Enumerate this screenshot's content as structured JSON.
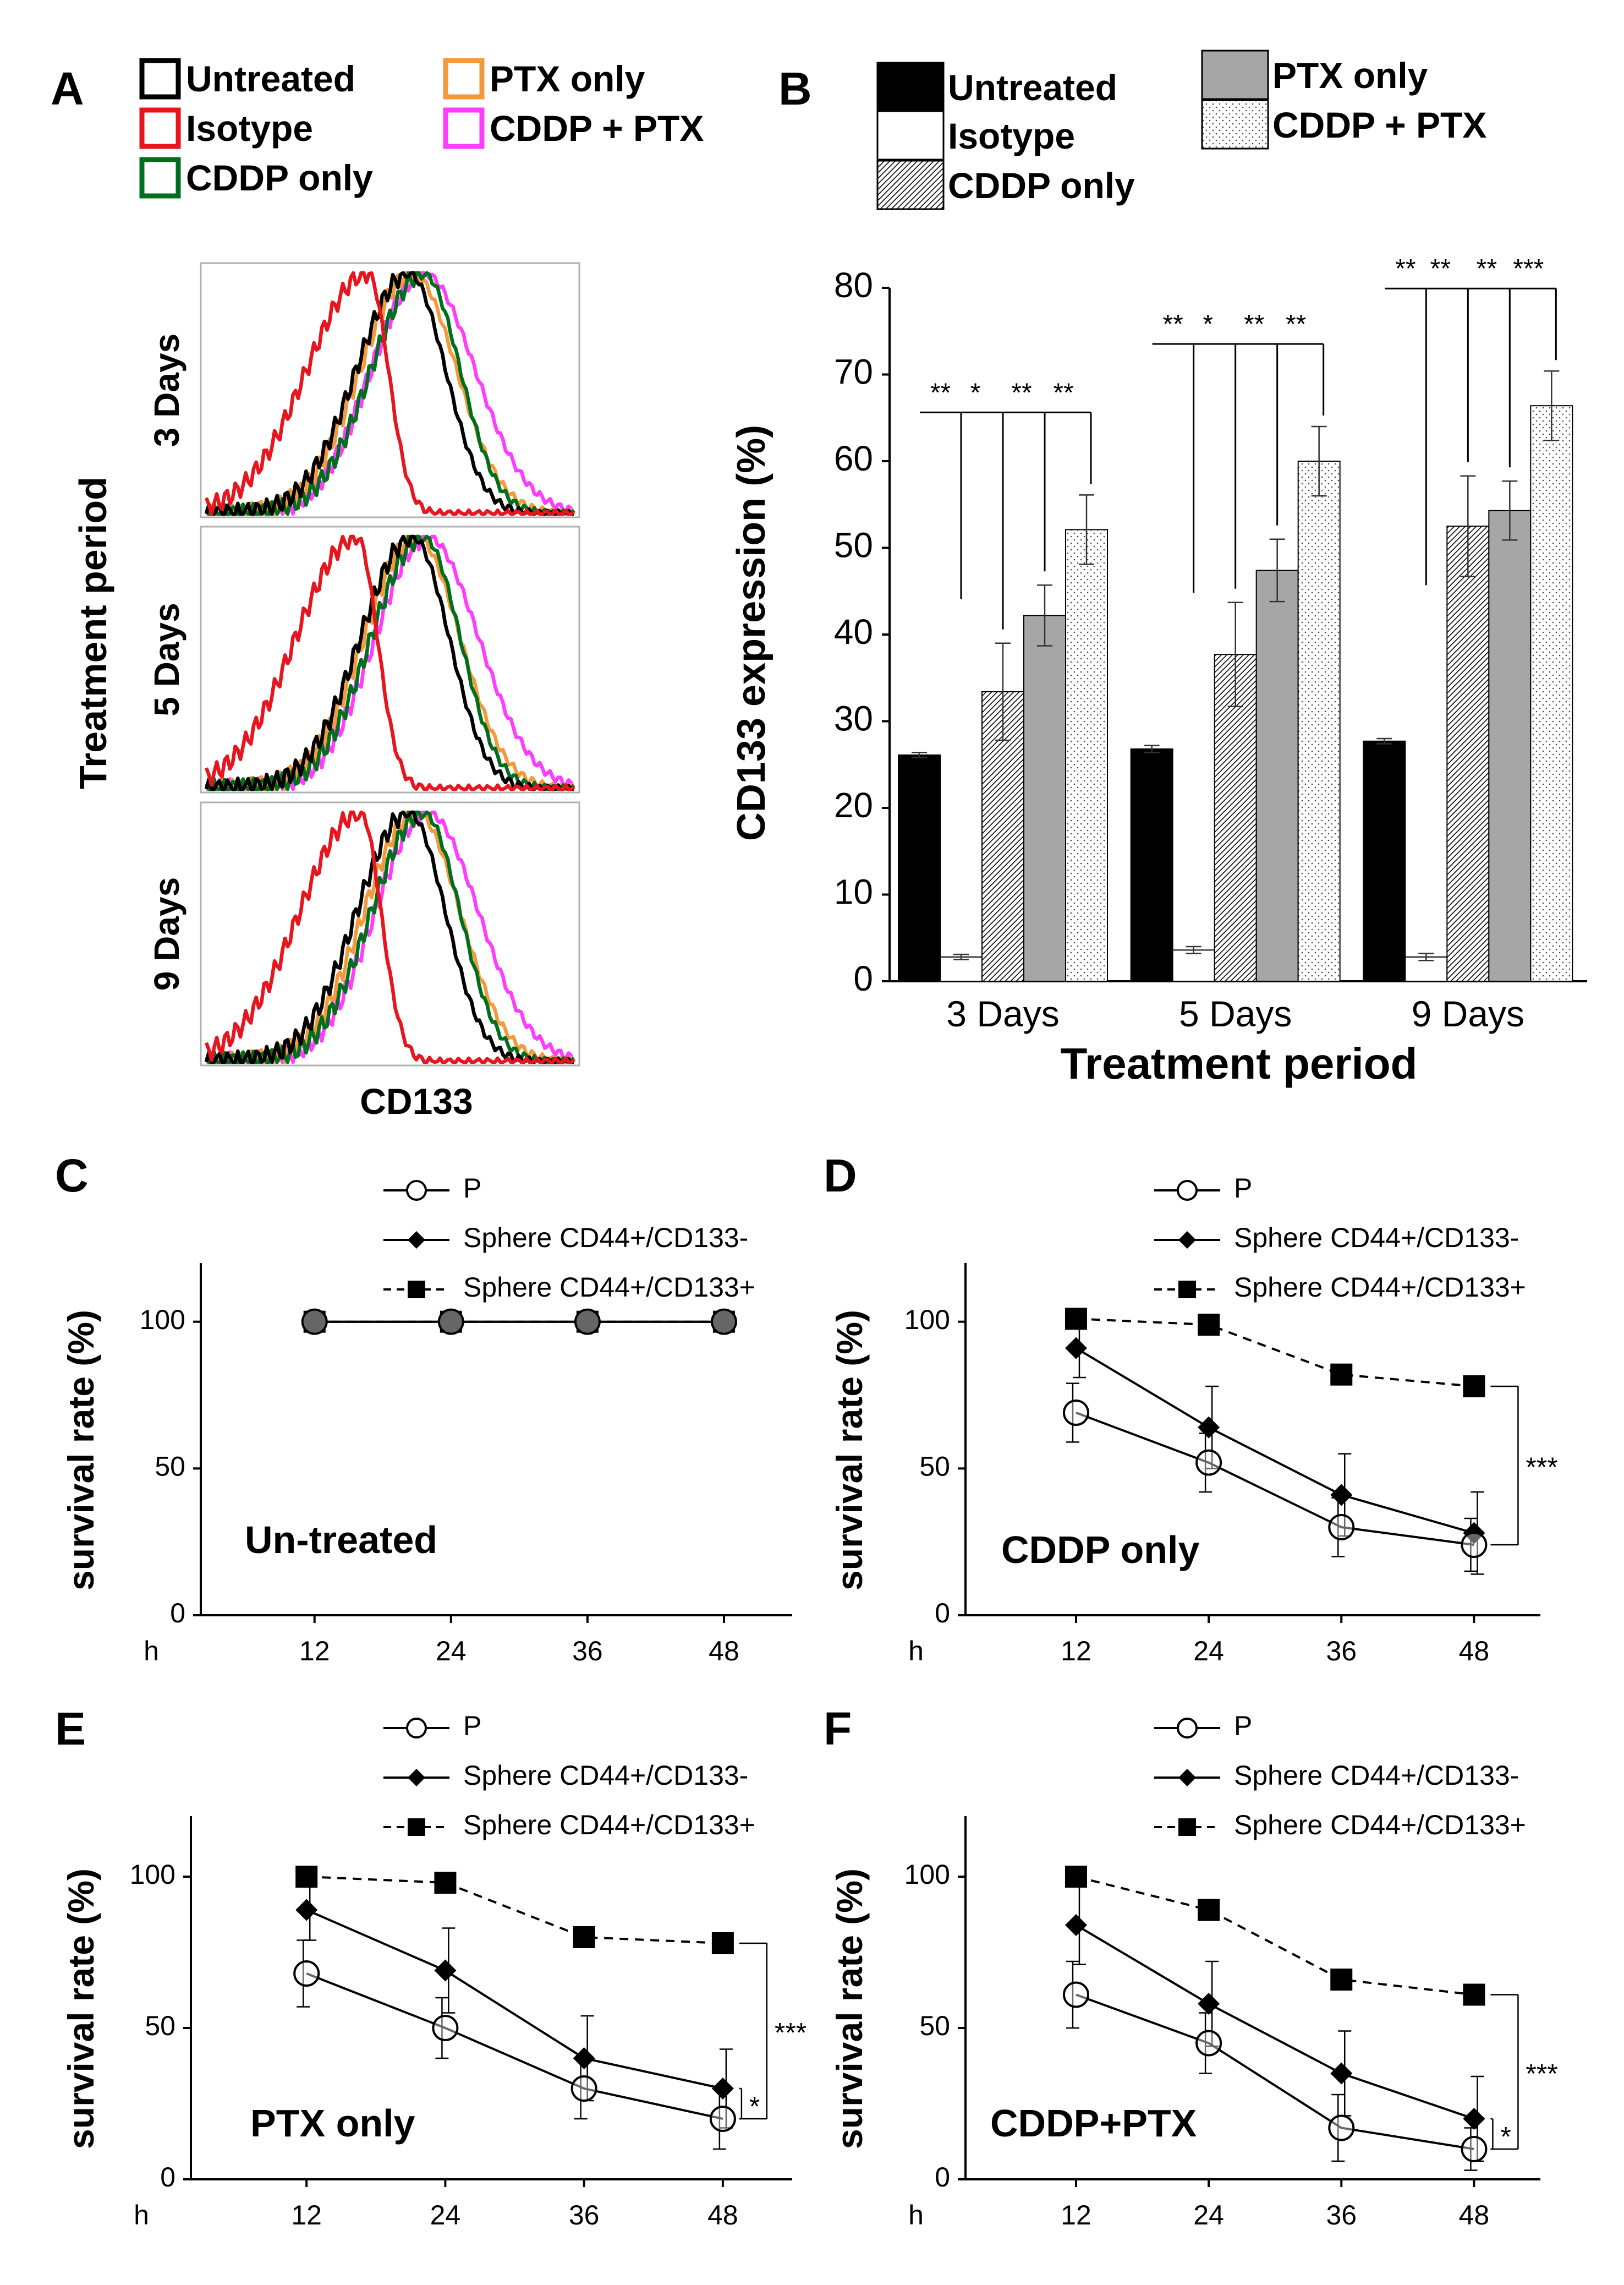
{
  "chart_data": [
    {
      "panel": "A",
      "type": "histogram-overlay",
      "legend": [
        "Untreated",
        "Isotype",
        "CDDP only",
        "PTX only",
        "CDDP + PTX"
      ],
      "colors": [
        "#000000",
        "#e8141e",
        "#006f1d",
        "#f59a3c",
        "#ff3cff"
      ],
      "rows": [
        "3 Days",
        "5 Days",
        "9 Days"
      ],
      "ylabel": "Treatment period",
      "xlabel": "CD133",
      "peaks": [
        [
          0.55,
          0.44,
          0.59,
          0.56,
          0.59
        ],
        [
          0.56,
          0.41,
          0.59,
          0.57,
          0.6
        ],
        [
          0.55,
          0.42,
          0.59,
          0.57,
          0.6
        ]
      ]
    },
    {
      "panel": "B",
      "type": "bar",
      "categories": [
        "3 Days",
        "5 Days",
        "9 Days"
      ],
      "series": [
        {
          "name": "Untreated",
          "values": [
            26.1,
            26.8,
            27.7
          ],
          "errors": [
            0.3,
            0.4,
            0.3
          ],
          "fill": "#000000"
        },
        {
          "name": "Isotype",
          "values": [
            2.8,
            3.6,
            2.8
          ],
          "errors": [
            0.3,
            0.4,
            0.4
          ],
          "fill": "#ffffff"
        },
        {
          "name": "CDDP only",
          "values": [
            33.4,
            37.7,
            52.5
          ],
          "errors": [
            5.6,
            6.0,
            5.8
          ],
          "fill": "hatch"
        },
        {
          "name": "PTX only",
          "values": [
            42.2,
            47.4,
            54.3
          ],
          "errors": [
            3.5,
            3.6,
            3.4
          ],
          "fill": "#a6a6a6"
        },
        {
          "name": "CDDP + PTX",
          "values": [
            52.1,
            60.0,
            66.4
          ],
          "errors": [
            4.0,
            4.0,
            4.0
          ],
          "fill": "dots"
        }
      ],
      "ylabel": "CD133 expression (%)",
      "xlabel": "Treatment period",
      "ylim": [
        0,
        80
      ],
      "yticks": [
        "0",
        "10",
        "20",
        "30",
        "40",
        "50",
        "60",
        "70",
        "80"
      ],
      "significance": [
        [
          "**",
          "*",
          "**",
          "**"
        ],
        [
          "**",
          "*",
          "**",
          "**"
        ],
        [
          "**",
          "**",
          "**",
          "***"
        ]
      ]
    },
    {
      "panel": "C",
      "type": "line",
      "annotation": "Un-treated",
      "x": [
        12,
        24,
        36,
        48
      ],
      "series": [
        {
          "name": "P",
          "values": [
            100,
            100,
            100,
            100
          ],
          "errors": [
            0,
            0,
            0,
            0
          ]
        },
        {
          "name": "Sphere CD44+/CD133-",
          "values": [
            100,
            100,
            100,
            100
          ],
          "errors": [
            0,
            0,
            0,
            0
          ]
        },
        {
          "name": "Sphere CD44+/CD133+",
          "values": [
            100,
            100,
            100,
            100
          ],
          "errors": [
            0,
            0,
            0,
            0
          ]
        }
      ],
      "ylabel": "survival rate (%)",
      "xlabel": "h",
      "ylim": [
        0,
        120
      ],
      "yticks": [
        "0",
        "50",
        "100"
      ],
      "xticks": [
        "12",
        "24",
        "36",
        "48"
      ],
      "significance": []
    },
    {
      "panel": "D",
      "type": "line",
      "annotation": "CDDP only",
      "x": [
        12,
        24,
        36,
        48
      ],
      "series": [
        {
          "name": "P",
          "values": [
            69,
            52,
            30,
            24
          ],
          "errors": [
            10,
            10,
            10,
            9
          ]
        },
        {
          "name": "Sphere CD44+/CD133-",
          "values": [
            91,
            64,
            41,
            28
          ],
          "errors": [
            10,
            14,
            14,
            14
          ]
        },
        {
          "name": "Sphere CD44+/CD133+",
          "values": [
            101,
            99,
            82,
            78
          ],
          "errors": [
            0,
            0,
            0,
            0
          ]
        }
      ],
      "ylabel": "survival rate (%)",
      "xlabel": "h",
      "ylim": [
        0,
        120
      ],
      "yticks": [
        "0",
        "50",
        "100"
      ],
      "xticks": [
        "12",
        "24",
        "36",
        "48"
      ],
      "significance": [
        {
          "label": "***",
          "from": 78,
          "to": 24
        }
      ]
    },
    {
      "panel": "E",
      "type": "line",
      "annotation": "PTX only",
      "x": [
        12,
        24,
        36,
        48
      ],
      "series": [
        {
          "name": "P",
          "values": [
            68,
            50,
            30,
            20
          ],
          "errors": [
            11,
            10,
            10,
            10
          ]
        },
        {
          "name": "Sphere CD44+/CD133-",
          "values": [
            89,
            69,
            40,
            30
          ],
          "errors": [
            10,
            14,
            14,
            13
          ]
        },
        {
          "name": "Sphere CD44+/CD133+",
          "values": [
            100,
            98,
            80,
            78
          ],
          "errors": [
            0,
            0,
            0,
            0
          ]
        }
      ],
      "ylabel": "survival rate (%)",
      "xlabel": "h",
      "ylim": [
        0,
        120
      ],
      "yticks": [
        "0",
        "50",
        "100"
      ],
      "xticks": [
        "12",
        "24",
        "36",
        "48"
      ],
      "significance": [
        {
          "label": "***",
          "from": 78,
          "to": 20
        },
        {
          "label": "*",
          "from": 30,
          "to": 20
        }
      ]
    },
    {
      "panel": "F",
      "type": "line",
      "annotation": "CDDP+PTX",
      "x": [
        12,
        24,
        36,
        48
      ],
      "series": [
        {
          "name": "P",
          "values": [
            61,
            45,
            17,
            10
          ],
          "errors": [
            11,
            10,
            11,
            7
          ]
        },
        {
          "name": "Sphere CD44+/CD133-",
          "values": [
            84,
            58,
            35,
            20
          ],
          "errors": [
            13,
            14,
            14,
            14
          ]
        },
        {
          "name": "Sphere CD44+/CD133+",
          "values": [
            100,
            89,
            66,
            61
          ],
          "errors": [
            0,
            0,
            0,
            0
          ]
        }
      ],
      "ylabel": "survival rate (%)",
      "xlabel": "h",
      "ylim": [
        0,
        120
      ],
      "yticks": [
        "0",
        "50",
        "100"
      ],
      "xticks": [
        "12",
        "24",
        "36",
        "48"
      ],
      "significance": [
        {
          "label": "***",
          "from": 61,
          "to": 10
        },
        {
          "label": "*",
          "from": 20,
          "to": 10
        }
      ]
    }
  ]
}
